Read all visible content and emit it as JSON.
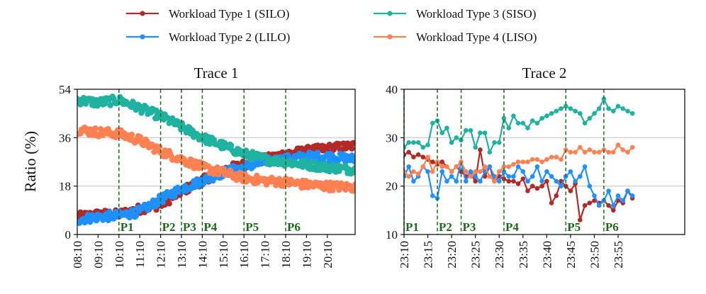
{
  "chart_data": [
    {
      "type": "line",
      "title": "Trace 1",
      "ylabel": "Ratio (%)",
      "ylim": [
        0,
        54
      ],
      "yticks": [
        0,
        18,
        36,
        54
      ],
      "x_start_min": 0,
      "x_end_min": 800,
      "xtick_labels": [
        "08:10",
        "09:10",
        "10:10",
        "11:10",
        "12:10",
        "13:10",
        "14:10",
        "15:10",
        "16:10",
        "17:10",
        "18:10",
        "19:10",
        "20:10"
      ],
      "xtick_minutes": [
        0,
        60,
        120,
        180,
        240,
        300,
        360,
        420,
        480,
        540,
        600,
        660,
        720
      ],
      "grid_y": [
        18,
        36
      ],
      "markers": [
        {
          "label": "P1",
          "minute": 120
        },
        {
          "label": "P2",
          "minute": 240
        },
        {
          "label": "P3",
          "minute": 300
        },
        {
          "label": "P4",
          "minute": 360
        },
        {
          "label": "P5",
          "minute": 480
        },
        {
          "label": "P6",
          "minute": 600
        }
      ],
      "series": [
        {
          "name": "Workload Type 1 (SILO)",
          "color": "#b22a28",
          "minutes": [
            0,
            60,
            120,
            180,
            240,
            300,
            360,
            420,
            480,
            540,
            600,
            660,
            720,
            800
          ],
          "values": [
            6.5,
            7.5,
            7.5,
            9.5,
            11,
            16,
            20,
            24,
            26,
            28,
            30,
            31,
            32,
            33
          ]
        },
        {
          "name": "Workload Type 2 (LILO)",
          "color": "#1e90ff",
          "minutes": [
            0,
            60,
            120,
            180,
            240,
            300,
            360,
            420,
            480,
            540,
            600,
            660,
            720,
            800
          ],
          "values": [
            5.5,
            6.5,
            7,
            8.5,
            13,
            17,
            20,
            23,
            25,
            27,
            28,
            29,
            29,
            28
          ]
        },
        {
          "name": "Workload Type 3 (SISO)",
          "color": "#20b2a0",
          "minutes": [
            0,
            60,
            120,
            180,
            240,
            300,
            360,
            420,
            480,
            540,
            600,
            660,
            720,
            800
          ],
          "values": [
            50,
            49,
            50,
            47,
            44,
            40,
            36,
            33,
            30,
            28,
            27,
            26,
            25,
            24
          ]
        },
        {
          "name": "Workload Type 4 (LISO)",
          "color": "#ff8050",
          "minutes": [
            0,
            60,
            120,
            180,
            240,
            300,
            360,
            420,
            480,
            540,
            600,
            660,
            720,
            800
          ],
          "values": [
            39,
            38,
            37.5,
            35,
            31,
            28,
            25,
            23,
            21,
            20,
            19.5,
            18.5,
            18,
            17.5
          ]
        }
      ]
    },
    {
      "type": "line",
      "title": "Trace 2",
      "ylim": [
        10,
        40
      ],
      "yticks": [
        10,
        20,
        30,
        40
      ],
      "x_start_min": 0,
      "x_end_min": 59,
      "xtick_labels": [
        "23:10",
        "23:15",
        "23:20",
        "23:25",
        "23:30",
        "23:35",
        "23:40",
        "23:45",
        "23:50",
        "23:55"
      ],
      "xtick_minutes": [
        0,
        5,
        10,
        15,
        20,
        25,
        30,
        35,
        40,
        45
      ],
      "grid_y": [
        20,
        30
      ],
      "markers": [
        {
          "label": "P1",
          "minute": 0
        },
        {
          "label": "P2",
          "minute": 7
        },
        {
          "label": "P3",
          "minute": 12
        },
        {
          "label": "P4",
          "minute": 21
        },
        {
          "label": "P5",
          "minute": 34
        },
        {
          "label": "P6",
          "minute": 42
        }
      ],
      "series": [
        {
          "name": "Workload Type 1 (SILO)",
          "color": "#b22a28",
          "minutes": [
            0,
            1,
            2,
            3,
            4,
            5,
            6,
            7,
            8,
            9,
            10,
            11,
            12,
            13,
            14,
            15,
            16,
            17,
            18,
            19,
            20,
            21,
            22,
            23,
            24,
            25,
            26,
            27,
            28,
            29,
            30,
            31,
            32,
            33,
            34,
            35,
            36,
            37,
            38,
            39,
            40,
            41,
            42,
            43,
            44,
            45,
            46,
            47,
            48
          ],
          "values": [
            26.5,
            27,
            26,
            26.5,
            26,
            25.5,
            25,
            24.5,
            25,
            24,
            23,
            24,
            23,
            22,
            22.5,
            21,
            27.5,
            22,
            24,
            21,
            22,
            21.5,
            21,
            21,
            20.5,
            21.5,
            19,
            20,
            19.5,
            20,
            21,
            16.5,
            18,
            21,
            20,
            19,
            20.5,
            13,
            16,
            16.5,
            17,
            16.5,
            17,
            16,
            15,
            17,
            16.5,
            19,
            17.5
          ]
        },
        {
          "name": "Workload Type 2 (LILO)",
          "color": "#1e90ff",
          "minutes": [
            0,
            1,
            2,
            3,
            4,
            5,
            6,
            7,
            8,
            9,
            10,
            11,
            12,
            13,
            14,
            15,
            16,
            17,
            18,
            19,
            20,
            21,
            22,
            23,
            24,
            25,
            26,
            27,
            28,
            29,
            30,
            31,
            32,
            33,
            34,
            35,
            36,
            37,
            38,
            39,
            40,
            41,
            42,
            43,
            44,
            45,
            46,
            47,
            48
          ],
          "values": [
            22,
            24,
            21,
            22,
            24,
            23,
            18,
            17.5,
            23,
            21,
            22,
            21,
            25,
            21,
            23,
            22,
            21,
            23,
            24,
            22,
            21,
            23,
            22,
            22,
            24,
            23,
            21,
            22,
            24,
            21,
            23,
            22,
            21,
            20,
            22,
            23,
            21,
            22,
            24,
            20,
            18,
            16,
            17,
            19,
            16,
            18,
            17,
            19,
            18
          ]
        },
        {
          "name": "Workload Type 3 (SISO)",
          "color": "#20b2a0",
          "minutes": [
            0,
            1,
            2,
            3,
            4,
            5,
            6,
            7,
            8,
            9,
            10,
            11,
            12,
            13,
            14,
            15,
            16,
            17,
            18,
            19,
            20,
            21,
            22,
            23,
            24,
            25,
            26,
            27,
            28,
            29,
            30,
            31,
            32,
            33,
            34,
            35,
            36,
            37,
            38,
            39,
            40,
            41,
            42,
            43,
            44,
            45,
            46,
            47,
            48
          ],
          "values": [
            28,
            29,
            29,
            29,
            28,
            28.5,
            33,
            33.5,
            31,
            32,
            29,
            30,
            29.5,
            31.5,
            31.5,
            28,
            31,
            31,
            27,
            29,
            29,
            34,
            32,
            34.5,
            33,
            33,
            32,
            33.5,
            33,
            34,
            34.5,
            35,
            35.5,
            36,
            36.5,
            36,
            35.5,
            35,
            33,
            34,
            35,
            36,
            38,
            36,
            35.5,
            36.5,
            36,
            35.5,
            35
          ]
        },
        {
          "name": "Workload Type 4 (LISO)",
          "color": "#ff8050",
          "minutes": [
            0,
            1,
            2,
            3,
            4,
            5,
            6,
            7,
            8,
            9,
            10,
            11,
            12,
            13,
            14,
            15,
            16,
            17,
            18,
            19,
            20,
            21,
            22,
            23,
            24,
            25,
            26,
            27,
            28,
            29,
            30,
            31,
            32,
            33,
            34,
            35,
            36,
            37,
            38,
            39,
            40,
            41,
            42,
            43,
            44,
            45,
            46,
            47,
            48
          ],
          "values": [
            23,
            22,
            23,
            22.5,
            24,
            26,
            23,
            25,
            24,
            24,
            23,
            24,
            25,
            23,
            22,
            23,
            23,
            24,
            22,
            21,
            23,
            24,
            24,
            24.5,
            25,
            25,
            25,
            25.5,
            25.5,
            25,
            25.5,
            26,
            26,
            25.5,
            27.5,
            27,
            27,
            28,
            27,
            27.5,
            27,
            27,
            27.5,
            27,
            27,
            28.5,
            27.5,
            27,
            28
          ]
        }
      ]
    }
  ],
  "legend": {
    "items": [
      {
        "label": "Workload Type 1 (SILO)",
        "color": "#b22a28"
      },
      {
        "label": "Workload Type 2 (LILO)",
        "color": "#1e90ff"
      },
      {
        "label": "Workload Type 3 (SISO)",
        "color": "#20b2a0"
      },
      {
        "label": "Workload Type 4 (LISO)",
        "color": "#ff8050"
      }
    ]
  }
}
